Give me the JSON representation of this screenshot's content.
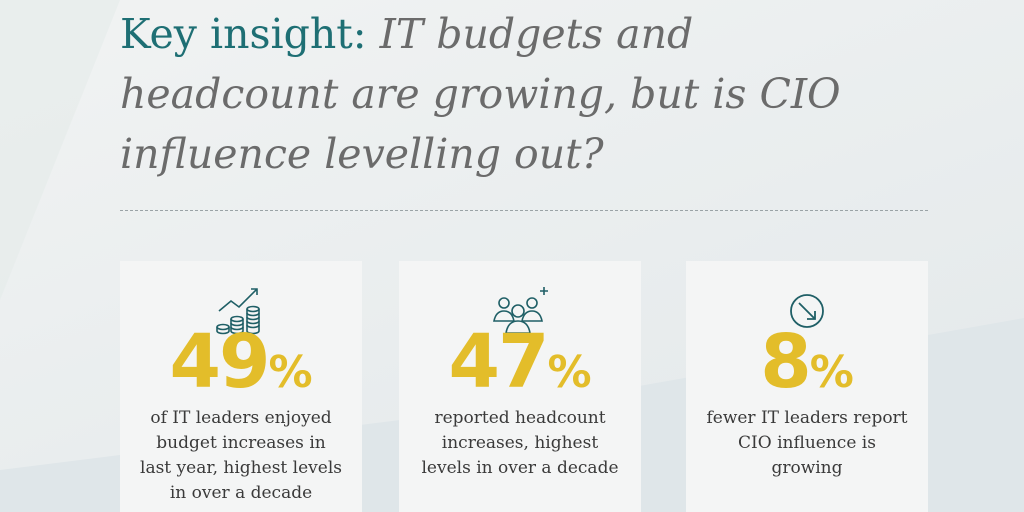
{
  "headline": {
    "lead": "Key insight:",
    "rest": "IT budgets and headcount are growing, but is CIO influence levelling out?"
  },
  "colors": {
    "teal": "#1e6f74",
    "gray_text": "#6b6b6b",
    "accent_yellow": "#e3bd2a",
    "icon_teal": "#1f5f66",
    "card_bg": "#f4f5f5"
  },
  "cards": [
    {
      "icon": "budget-growth-coins-icon",
      "value": "49",
      "unit": "%",
      "description": "of IT leaders enjoyed budget increases in last year, highest levels in over a decade"
    },
    {
      "icon": "headcount-people-plus-icon",
      "value": "47",
      "unit": "%",
      "description": "reported headcount increases, highest levels in over a decade"
    },
    {
      "icon": "downward-arrow-circle-icon",
      "value": "8",
      "unit": "%",
      "description": "fewer IT leaders report CIO influence is growing"
    }
  ]
}
